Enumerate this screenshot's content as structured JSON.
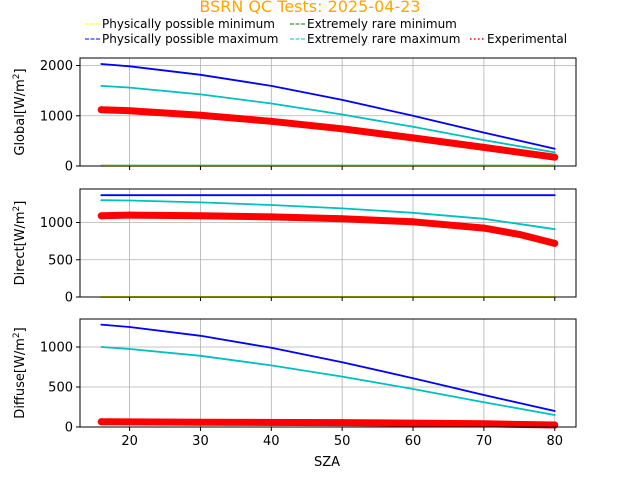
{
  "chart_data": {
    "type": "line",
    "title": "BSRN QC Tests: 2025-04-23",
    "title_color": "#ffa500",
    "legend_placement": "top",
    "legend": [
      {
        "label": "Physically possible minimum",
        "color": "#ffff00",
        "style": "dashed"
      },
      {
        "label": "Physically possible maximum",
        "color": "#0000ff",
        "style": "dashed"
      },
      {
        "label": "Extremely rare minimum",
        "color": "#008000",
        "style": "dashed"
      },
      {
        "label": "Extremely rare maximum",
        "color": "#00bfbf",
        "style": "dashed"
      },
      {
        "label": "Experimental",
        "color": "#ff0000",
        "style": "dotted"
      }
    ],
    "xlabel": "SZA",
    "x_ticks": [
      20,
      30,
      40,
      50,
      60,
      70,
      80
    ],
    "xlim": [
      13,
      83
    ],
    "grid": true,
    "panels": [
      {
        "ylabel_prefix": "Global[W/m",
        "ylabel_sup": "2",
        "ylabel_suffix": "]",
        "ylim": [
          0,
          2150
        ],
        "y_ticks": [
          0,
          1000,
          2000
        ],
        "series": [
          {
            "role": "pp_max",
            "color": "#0000ff",
            "x": [
              16,
              20,
              30,
              40,
              50,
              60,
              70,
              80
            ],
            "y": [
              2030,
              1985,
              1815,
              1595,
              1315,
              1000,
              665,
              345
            ]
          },
          {
            "role": "er_max",
            "color": "#00bfbf",
            "x": [
              16,
              20,
              30,
              40,
              50,
              60,
              70,
              80
            ],
            "y": [
              1595,
              1560,
              1425,
              1245,
              1025,
              780,
              515,
              270
            ]
          },
          {
            "role": "er_min",
            "color": "#008000",
            "x": [
              16,
              80
            ],
            "y": [
              5,
              5
            ]
          },
          {
            "role": "pp_min",
            "color": "#ffff00",
            "x": [
              16,
              80
            ],
            "y": [
              2,
              2
            ]
          },
          {
            "role": "experimental",
            "color": "#ff0000",
            "x": [
              16,
              20,
              30,
              40,
              50,
              60,
              70,
              80
            ],
            "y": [
              1120,
              1100,
              1010,
              890,
              740,
              560,
              370,
              175
            ]
          }
        ]
      },
      {
        "ylabel_prefix": "Direct[W/m",
        "ylabel_sup": "2",
        "ylabel_suffix": "]",
        "ylim": [
          0,
          1450
        ],
        "y_ticks": [
          0,
          500,
          1000
        ],
        "series": [
          {
            "role": "pp_max",
            "color": "#0000ff",
            "x": [
              16,
              80
            ],
            "y": [
              1367,
              1367
            ]
          },
          {
            "role": "er_max",
            "color": "#00bfbf",
            "x": [
              16,
              20,
              30,
              40,
              50,
              60,
              70,
              80
            ],
            "y": [
              1300,
              1295,
              1270,
              1235,
              1190,
              1130,
              1050,
              910
            ]
          },
          {
            "role": "er_min",
            "color": "#008000",
            "x": [
              16,
              80
            ],
            "y": [
              2,
              2
            ]
          },
          {
            "role": "pp_min",
            "color": "#ffff00",
            "x": [
              16,
              80
            ],
            "y": [
              1,
              1
            ]
          },
          {
            "role": "experimental",
            "color": "#ff0000",
            "x": [
              16,
              20,
              30,
              40,
              50,
              60,
              70,
              75,
              80
            ],
            "y": [
              1090,
              1100,
              1090,
              1075,
              1050,
              1010,
              925,
              840,
              720
            ]
          }
        ]
      },
      {
        "ylabel_prefix": "Diffuse[W/m",
        "ylabel_sup": "2",
        "ylabel_suffix": "]",
        "ylim": [
          0,
          1350
        ],
        "y_ticks": [
          0,
          500,
          1000
        ],
        "series": [
          {
            "role": "pp_max",
            "color": "#0000ff",
            "x": [
              16,
              20,
              30,
              40,
              50,
              60,
              70,
              80
            ],
            "y": [
              1280,
              1250,
              1140,
              990,
              810,
              610,
              400,
              200
            ]
          },
          {
            "role": "er_max",
            "color": "#00bfbf",
            "x": [
              16,
              20,
              30,
              40,
              50,
              60,
              70,
              80
            ],
            "y": [
              1000,
              975,
              890,
              770,
              630,
              475,
              310,
              150
            ]
          },
          {
            "role": "experimental",
            "color": "#ff0000",
            "x": [
              16,
              30,
              50,
              70,
              80
            ],
            "y": [
              65,
              60,
              55,
              40,
              25
            ]
          }
        ]
      }
    ]
  }
}
